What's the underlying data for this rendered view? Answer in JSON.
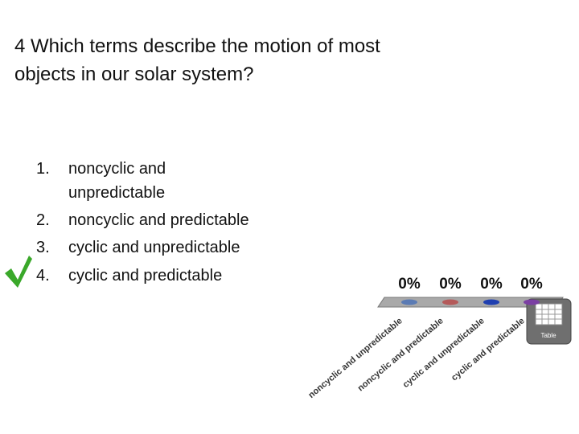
{
  "question": "4 Which terms describe the motion of most objects in our solar system?",
  "options": [
    {
      "number": "1.",
      "text": "noncyclic and unpredictable"
    },
    {
      "number": "2.",
      "text": "noncyclic and predictable"
    },
    {
      "number": "3.",
      "text": "cyclic and unpredictable"
    },
    {
      "number": "4.",
      "text": "cyclic and predictable"
    }
  ],
  "chart_data": {
    "type": "bar",
    "categories": [
      "noncyclic and unpredictable",
      "noncyclic and predictable",
      "cyclic and unpredictable",
      "cyclic and predictable"
    ],
    "values": [
      0,
      0,
      0,
      0
    ],
    "value_labels": [
      "0%",
      "0%",
      "0%",
      "0%"
    ],
    "colors": [
      "#5b7bb4",
      "#b45a5a",
      "#1f3fb0",
      "#7b3fa3"
    ]
  },
  "toolbar": {
    "table_label": "Table"
  }
}
